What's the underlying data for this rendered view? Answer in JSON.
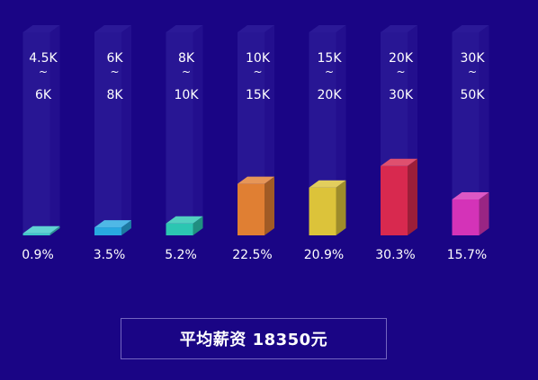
{
  "chart_data": {
    "type": "bar",
    "categories": [
      [
        "4.5K",
        "~",
        "6K"
      ],
      [
        "6K",
        "~",
        "8K"
      ],
      [
        "8K",
        "~",
        "10K"
      ],
      [
        "10K",
        "~",
        "15K"
      ],
      [
        "15K",
        "~",
        "20K"
      ],
      [
        "20K",
        "~",
        "30K"
      ],
      [
        "30K",
        "~",
        "50K"
      ]
    ],
    "values": [
      0.9,
      3.5,
      5.2,
      22.5,
      20.9,
      30.3,
      15.7
    ],
    "value_labels": [
      "0.9%",
      "3.5%",
      "5.2%",
      "22.5%",
      "20.9%",
      "30.3%",
      "15.7%"
    ],
    "colors": [
      "#3ec9c9",
      "#28a9e0",
      "#2cc6b2",
      "#e07f33",
      "#dcc33a",
      "#d8294f",
      "#d433b8"
    ],
    "ylim": [
      0,
      35
    ]
  },
  "summary": {
    "text": "平均薪资 18350元"
  },
  "colors": {
    "background": "#1a0585",
    "column_track": "#2e1c99",
    "label": "#ffffff"
  }
}
